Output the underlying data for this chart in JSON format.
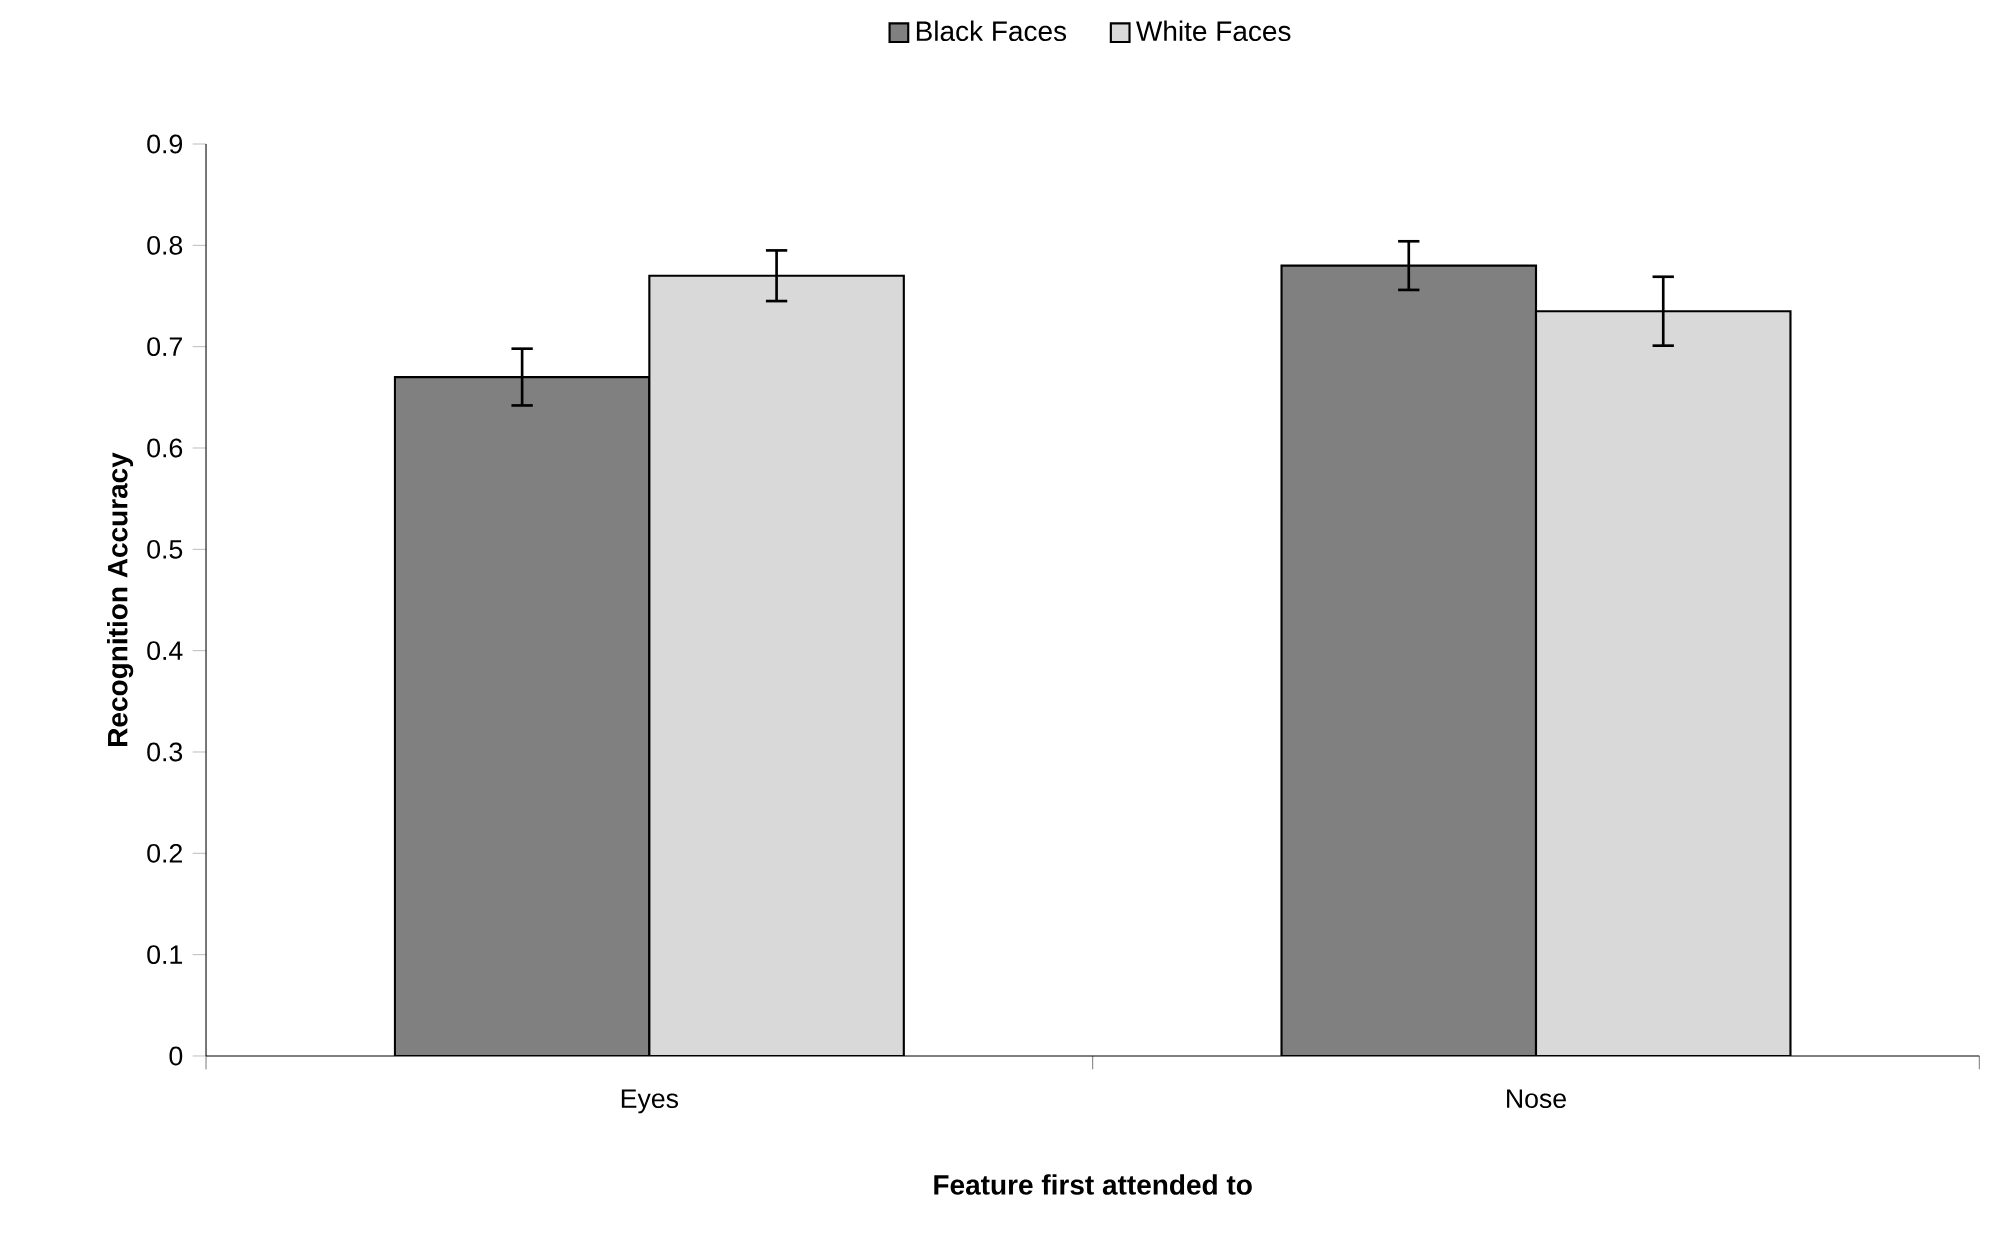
{
  "chart_data": {
    "type": "bar",
    "xlabel": "Feature first attended to",
    "ylabel": "Recognition Accuracy",
    "categories": [
      "Eyes",
      "Nose"
    ],
    "series": [
      {
        "name": "Black Faces",
        "color": "#808080",
        "values": [
          0.67,
          0.78
        ],
        "errors": [
          0.028,
          0.024
        ]
      },
      {
        "name": "White Faces",
        "color": "#d9d9d9",
        "values": [
          0.77,
          0.735
        ],
        "errors": [
          0.025,
          0.034
        ]
      }
    ],
    "ylim": [
      0,
      0.9
    ],
    "yticks": [
      0,
      0.1,
      0.2,
      0.3,
      0.4,
      0.5,
      0.6,
      0.7,
      0.8,
      0.9
    ],
    "grid": false,
    "legend": "top"
  }
}
